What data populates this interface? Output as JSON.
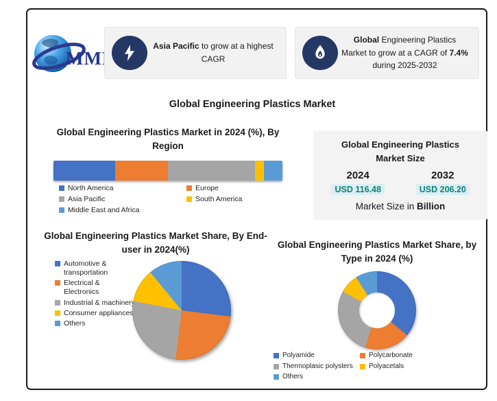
{
  "page": {
    "background": "#ffffff",
    "border_color": "#1b1b1b"
  },
  "logo": {
    "text": "MMR",
    "accent_navy": "#23368f"
  },
  "callouts": [
    {
      "icon": "lightning-icon",
      "segments": [
        {
          "text": "Asia Pacific",
          "bold": true
        },
        {
          "text": " to grow at a highest CAGR",
          "bold": false
        }
      ]
    },
    {
      "icon": "flame-icon",
      "segments": [
        {
          "text": "Global",
          "bold": true
        },
        {
          "text": " Engineering Plastics Market to grow at a CAGR of ",
          "bold": false
        },
        {
          "text": "7.4%",
          "bold": true
        },
        {
          "text": " during 2025-2032",
          "bold": false
        }
      ]
    }
  ],
  "main_title": "Global Engineering Plastics Market",
  "market_size_box": {
    "title": "Global Engineering Plastics Market Size",
    "columns": [
      {
        "year": "2024",
        "value": "USD 116.48"
      },
      {
        "year": "2032",
        "value": "USD 206.20"
      }
    ],
    "footer_prefix": "Market Size in ",
    "footer_bold": "Billion",
    "value_color": "#0e8276",
    "value_highlight": "#daeef3"
  },
  "chart_data": [
    {
      "type": "bar",
      "variant": "stacked-horizontal-single-bar",
      "title": "Global Engineering Plastics Market in 2024 (%), By Region",
      "categories": [
        "North America",
        "Europe",
        "Asia Pacific",
        "South America",
        "Middle East and Africa"
      ],
      "values": [
        27,
        23,
        38,
        4,
        8
      ],
      "unit": "%",
      "colors": [
        "#4472C4",
        "#ED7D31",
        "#A5A5A5",
        "#FFC000",
        "#5B9BD5"
      ],
      "legend_position": "bottom",
      "axes": "none"
    },
    {
      "type": "pie",
      "title": "Global Engineering Plastics Market Share, By End-user in 2024(%)",
      "categories": [
        "Automotive & transportation",
        "Electrical & Electronics",
        "Industrial & machinery",
        "Consumer appliances",
        "Others"
      ],
      "values": [
        27,
        25,
        26,
        11,
        11
      ],
      "unit": "%",
      "colors": [
        "#4472C4",
        "#ED7D31",
        "#A5A5A5",
        "#FFC000",
        "#5B9BD5"
      ],
      "legend_position": "left"
    },
    {
      "type": "pie",
      "variant": "donut",
      "title": "Global Engineering Plastics Market Share, by Type in 2024 (%)",
      "categories": [
        "Polyamide",
        "Polycarbonate",
        "Thermoplasic polysters",
        "Polyacetals",
        "Others"
      ],
      "values": [
        36,
        19,
        28,
        8,
        9
      ],
      "unit": "%",
      "colors": [
        "#4472C4",
        "#ED7D31",
        "#A5A5A5",
        "#FFC000",
        "#5B9BD5"
      ],
      "legend_position": "bottom"
    }
  ]
}
